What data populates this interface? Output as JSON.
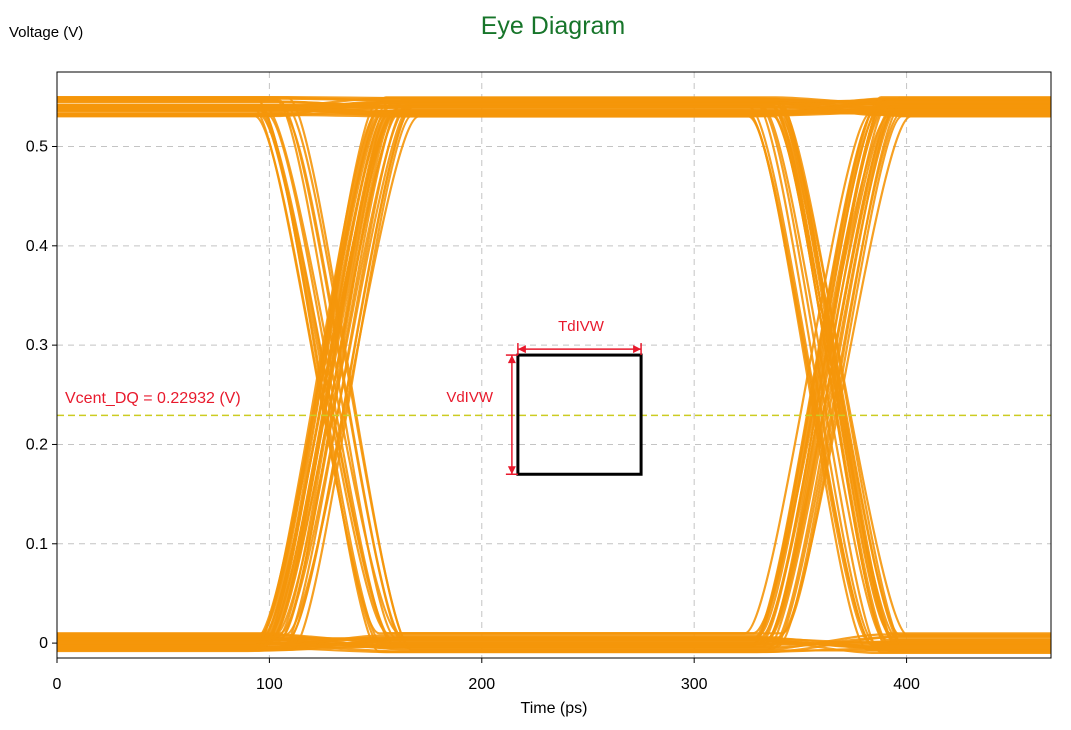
{
  "chart_data": {
    "type": "line",
    "title": "Eye Diagram",
    "xlabel": "Time (ps)",
    "ylabel": "Voltage (V)",
    "xlim": [
      0,
      468
    ],
    "ylim": [
      -0.015,
      0.575
    ],
    "xticks": [
      0,
      100,
      200,
      300,
      400
    ],
    "yticks": [
      0,
      0.1,
      0.2,
      0.3,
      0.4,
      0.5
    ],
    "grid": true,
    "legend": "none",
    "unit_interval_ps": 232,
    "crossing_times_ps": [
      130,
      362
    ],
    "levels_v": {
      "low": 0.0,
      "high": 0.54,
      "band": 0.02
    },
    "reference_line": {
      "label": "Vcent_DQ = 0.22932 (V)",
      "value": 0.22932
    },
    "eye_mask": {
      "x_range": [
        217,
        275
      ],
      "y_range": [
        0.17,
        0.29
      ]
    },
    "mask_labels": {
      "horizontal": "TdIVW",
      "vertical": "VdIVW"
    },
    "colors": {
      "trace": "#f5960a",
      "title": "#17752a",
      "annotation": "#e8192c",
      "reference": "#cccc22",
      "grid": "#c4c4c4",
      "mask": "#000000"
    }
  }
}
